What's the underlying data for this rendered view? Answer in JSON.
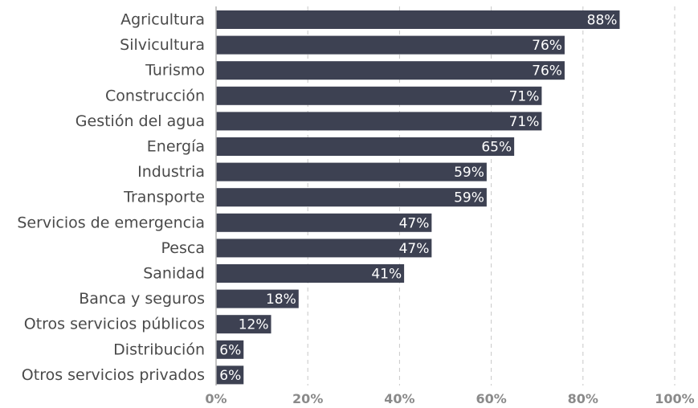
{
  "chart_data": {
    "type": "bar",
    "orientation": "horizontal",
    "categories": [
      "Agricultura",
      "Silvicultura",
      "Turismo",
      "Construcción",
      "Gestión del agua",
      "Energía",
      "Industria",
      "Transporte",
      "Servicios de emergencia",
      "Pesca",
      "Sanidad",
      "Banca y seguros",
      "Otros servicios públicos",
      "Distribución",
      "Otros servicios privados"
    ],
    "values": [
      88,
      76,
      76,
      71,
      71,
      65,
      59,
      59,
      47,
      47,
      41,
      18,
      12,
      6,
      6
    ],
    "value_labels": [
      "88%",
      "76%",
      "76%",
      "71%",
      "71%",
      "65%",
      "59%",
      "59%",
      "47%",
      "47%",
      "41%",
      "18%",
      "12%",
      "6%",
      "6%"
    ],
    "xlim": [
      0,
      100
    ],
    "x_ticks": [
      0,
      20,
      40,
      60,
      80,
      100
    ],
    "x_tick_labels": [
      "0%",
      "20%",
      "40%",
      "60%",
      "80%",
      "100%"
    ],
    "grid": true,
    "bar_color": "#3d4152",
    "label_color": "#ffffff"
  }
}
